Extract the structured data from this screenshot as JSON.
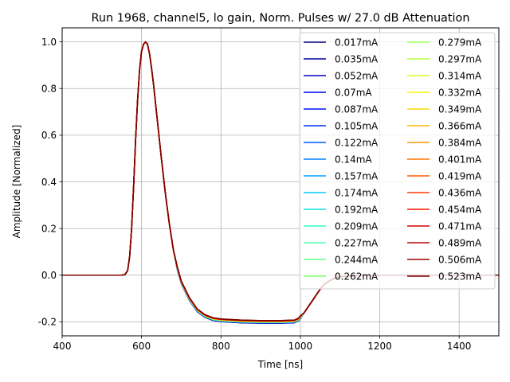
{
  "chart_data": {
    "type": "line",
    "title": "Run 1968, channel5, lo gain, Norm. Pulses w/ 27.0 dB Attenuation",
    "xlabel": "Time [ns]",
    "ylabel": "Amplitude [Normalized]",
    "xlim": [
      400,
      1500
    ],
    "ylim": [
      -0.26,
      1.06
    ],
    "xticks": [
      400,
      600,
      800,
      1000,
      1200,
      1400
    ],
    "yticks": [
      -0.2,
      0.0,
      0.2,
      0.4,
      0.6,
      0.8,
      1.0
    ],
    "grid": true,
    "legend_position": "upper-right",
    "legend_columns": 2,
    "pulse_shape": {
      "x": [
        400,
        550,
        558,
        565,
        570,
        575,
        580,
        585,
        590,
        595,
        600,
        605,
        610,
        615,
        620,
        625,
        630,
        640,
        650,
        660,
        670,
        680,
        690,
        700,
        720,
        740,
        760,
        780,
        800,
        850,
        900,
        950,
        985,
        995,
        1000,
        1010,
        1020,
        1030,
        1040,
        1050,
        1060,
        1070,
        1080,
        1090,
        1100,
        1120,
        1150,
        1200,
        1300,
        1400,
        1500
      ],
      "y": [
        0,
        0,
        0.002,
        0.02,
        0.08,
        0.2,
        0.38,
        0.58,
        0.75,
        0.88,
        0.96,
        0.99,
        1.0,
        0.99,
        0.95,
        0.89,
        0.82,
        0.66,
        0.5,
        0.35,
        0.22,
        0.11,
        0.03,
        -0.03,
        -0.1,
        -0.15,
        -0.175,
        -0.188,
        -0.193,
        -0.198,
        -0.2,
        -0.2,
        -0.198,
        -0.19,
        -0.18,
        -0.16,
        -0.135,
        -0.11,
        -0.085,
        -0.06,
        -0.04,
        -0.028,
        -0.018,
        -0.011,
        -0.007,
        -0.003,
        -0.001,
        0,
        0,
        0,
        0
      ]
    },
    "series": [
      {
        "name": "0.017mA",
        "color": "#00007f"
      },
      {
        "name": "0.035mA",
        "color": "#00009f"
      },
      {
        "name": "0.052mA",
        "color": "#0000c4"
      },
      {
        "name": "0.07mA",
        "color": "#0000ed"
      },
      {
        "name": "0.087mA",
        "color": "#0010ff"
      },
      {
        "name": "0.105mA",
        "color": "#0034ff"
      },
      {
        "name": "0.122mA",
        "color": "#0058ff"
      },
      {
        "name": "0.14mA",
        "color": "#0080ff"
      },
      {
        "name": "0.157mA",
        "color": "#00a4ff"
      },
      {
        "name": "0.174mA",
        "color": "#00c8ff"
      },
      {
        "name": "0.192mA",
        "color": "#0ce4eb"
      },
      {
        "name": "0.209mA",
        "color": "#2cffca"
      },
      {
        "name": "0.227mA",
        "color": "#4affad"
      },
      {
        "name": "0.244mA",
        "color": "#66ff90"
      },
      {
        "name": "0.262mA",
        "color": "#83ff73"
      },
      {
        "name": "0.279mA",
        "color": "#9fff56"
      },
      {
        "name": "0.297mA",
        "color": "#b9ff3c"
      },
      {
        "name": "0.314mA",
        "color": "#d7ff1f"
      },
      {
        "name": "0.332mA",
        "color": "#f4f802"
      },
      {
        "name": "0.349mA",
        "color": "#ffd700"
      },
      {
        "name": "0.366mA",
        "color": "#ffb900"
      },
      {
        "name": "0.384mA",
        "color": "#ff9700"
      },
      {
        "name": "0.401mA",
        "color": "#ff7700"
      },
      {
        "name": "0.419mA",
        "color": "#ff5900"
      },
      {
        "name": "0.436mA",
        "color": "#ff3800"
      },
      {
        "name": "0.454mA",
        "color": "#f81800"
      },
      {
        "name": "0.471mA",
        "color": "#da0000"
      },
      {
        "name": "0.489mA",
        "color": "#bf0000"
      },
      {
        "name": "0.506mA",
        "color": "#9f0000"
      },
      {
        "name": "0.523mA",
        "color": "#7f0000"
      }
    ]
  }
}
